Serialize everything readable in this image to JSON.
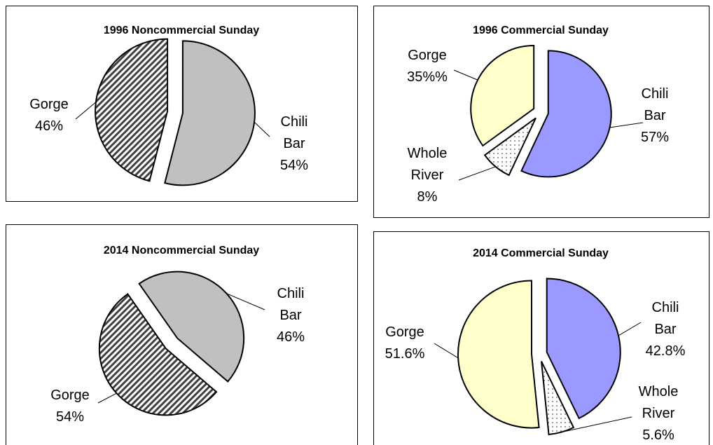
{
  "chart_data": [
    {
      "type": "pie",
      "title": "1996 Noncommercial Sunday",
      "categories": [
        "Chili Bar",
        "Gorge"
      ],
      "values": [
        54,
        46
      ],
      "value_labels": [
        "54%",
        "46%"
      ],
      "colors": [
        "#c0c0c0",
        "#404040"
      ],
      "patterns": [
        "solid",
        "hatch"
      ]
    },
    {
      "type": "pie",
      "title": "1996 Commercial Sunday",
      "categories": [
        "Chili Bar",
        "Whole River",
        "Gorge"
      ],
      "values": [
        57,
        8,
        35
      ],
      "value_labels": [
        "57%",
        "8%",
        "35%%"
      ],
      "colors": [
        "#9999ff",
        "#ffffff",
        "#ffffcc"
      ],
      "patterns": [
        "solid",
        "dots",
        "solid"
      ]
    },
    {
      "type": "pie",
      "title": "2014 Noncommercial Sunday",
      "categories": [
        "Chili Bar",
        "Gorge"
      ],
      "values": [
        46,
        54
      ],
      "value_labels": [
        "46%",
        "54%"
      ],
      "colors": [
        "#c0c0c0",
        "#404040"
      ],
      "patterns": [
        "solid",
        "hatch"
      ]
    },
    {
      "type": "pie",
      "title": "2014 Commercial Sunday",
      "categories": [
        "Chili Bar",
        "Whole River",
        "Gorge"
      ],
      "values": [
        42.8,
        5.6,
        51.6
      ],
      "value_labels": [
        "42.8%",
        "5.6%",
        "51.6%"
      ],
      "colors": [
        "#9999ff",
        "#ffffff",
        "#ffffcc"
      ],
      "patterns": [
        "solid",
        "dots",
        "solid"
      ]
    }
  ]
}
